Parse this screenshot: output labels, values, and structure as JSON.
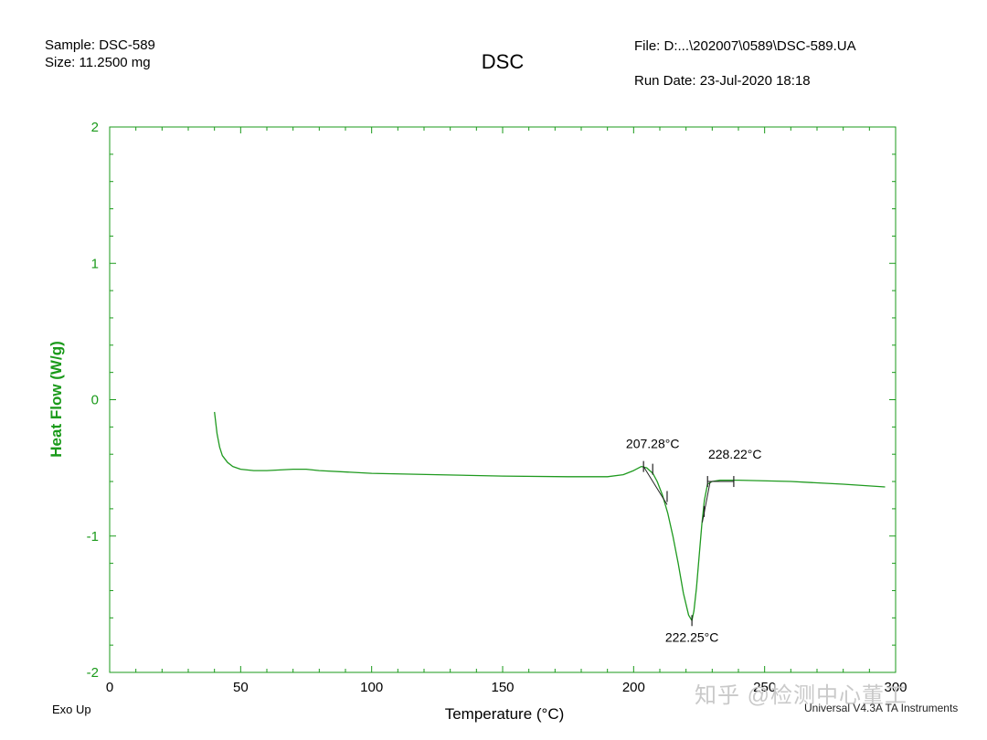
{
  "header": {
    "sample": "Sample: DSC-589",
    "size": "Size:  11.2500 mg",
    "title": "DSC",
    "file": "File: D:...\\202007\\0589\\DSC-589.UA",
    "run_date": "Run Date: 23-Jul-2020 18:18"
  },
  "footer": {
    "exo_up": "Exo Up",
    "software": "Universal V4.3A TA Instruments",
    "watermark": "知乎 @检测中心董工"
  },
  "colors": {
    "axis": "#1a9a1a",
    "curve": "#1f9a1f",
    "annotation": "#222222"
  },
  "chart_data": {
    "type": "line",
    "xlabel": "Temperature (°C)",
    "ylabel": "Heat Flow (W/g)",
    "xlim": [
      0,
      300
    ],
    "ylim": [
      -2,
      2
    ],
    "x_ticks": [
      0,
      50,
      100,
      150,
      200,
      250,
      300
    ],
    "y_ticks": [
      -2,
      -1,
      0,
      1,
      2
    ],
    "grid": false,
    "series": [
      {
        "x": [
          40,
          41,
          42,
          43,
          45,
          47,
          50,
          55,
          60,
          70,
          75,
          80,
          100,
          125,
          150,
          175,
          190,
          196,
          200,
          203,
          205,
          207.3,
          209,
          211,
          213,
          215,
          217,
          219,
          221,
          222.25,
          223,
          224,
          225,
          226,
          227,
          228.2,
          230,
          233,
          240,
          260,
          280,
          296
        ],
        "y": [
          -0.09,
          -0.25,
          -0.35,
          -0.41,
          -0.46,
          -0.49,
          -0.51,
          -0.52,
          -0.52,
          -0.51,
          -0.51,
          -0.52,
          -0.54,
          -0.55,
          -0.56,
          -0.565,
          -0.565,
          -0.55,
          -0.52,
          -0.49,
          -0.5,
          -0.54,
          -0.6,
          -0.7,
          -0.83,
          -1.0,
          -1.2,
          -1.42,
          -1.58,
          -1.62,
          -1.55,
          -1.38,
          -1.15,
          -0.92,
          -0.74,
          -0.62,
          -0.6,
          -0.59,
          -0.59,
          -0.6,
          -0.62,
          -0.64
        ]
      }
    ],
    "annotations": [
      {
        "label": "207.28°C",
        "x": 207.28,
        "y": -0.49,
        "kind": "onset"
      },
      {
        "label": "228.22°C",
        "x": 228.22,
        "y": -0.6,
        "kind": "endset"
      },
      {
        "label": "222.25°C",
        "x": 222.25,
        "y": -1.62,
        "kind": "peak"
      }
    ]
  }
}
